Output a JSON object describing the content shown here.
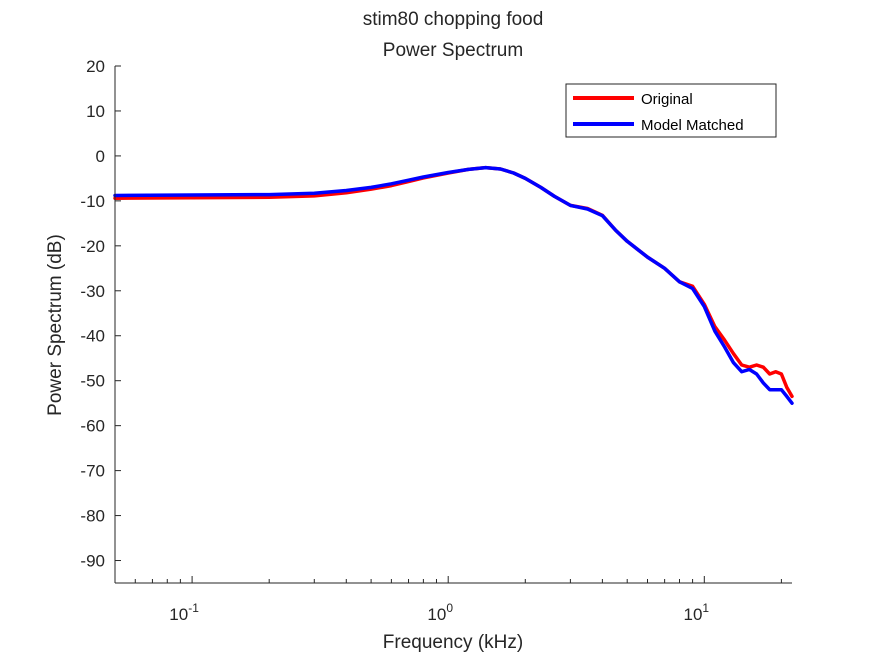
{
  "chart_data": {
    "type": "line",
    "title": [
      "stim80 chopping food",
      "Power Spectrum"
    ],
    "xlabel": "Frequency (kHz)",
    "ylabel": "Power Spectrum (dB)",
    "xscale": "log",
    "xlim": [
      0.05,
      22
    ],
    "ylim": [
      -95,
      20
    ],
    "yticks": [
      20,
      10,
      0,
      -10,
      -20,
      -30,
      -40,
      -50,
      -60,
      -70,
      -80,
      -90
    ],
    "yticklabels": [
      "20",
      "10",
      "0",
      "-10",
      "-20",
      "-30",
      "-40",
      "-50",
      "-60",
      "-70",
      "-80",
      "-90"
    ],
    "xticks": [
      {
        "value": 0.1,
        "base": "10",
        "exp": "-1"
      },
      {
        "value": 1,
        "base": "10",
        "exp": "0"
      },
      {
        "value": 10,
        "base": "10",
        "exp": "1"
      }
    ],
    "grid": false,
    "legend": "top-right",
    "series": [
      {
        "name": "Original",
        "color": "#ff0000",
        "points": [
          [
            0.05,
            -9.4
          ],
          [
            0.1,
            -9.3
          ],
          [
            0.2,
            -9.2
          ],
          [
            0.3,
            -8.9
          ],
          [
            0.4,
            -8.2
          ],
          [
            0.5,
            -7.4
          ],
          [
            0.6,
            -6.6
          ],
          [
            0.7,
            -5.7
          ],
          [
            0.8,
            -4.9
          ],
          [
            1.0,
            -3.8
          ],
          [
            1.2,
            -3.0
          ],
          [
            1.4,
            -2.6
          ],
          [
            1.6,
            -2.9
          ],
          [
            1.8,
            -3.8
          ],
          [
            2.0,
            -5.0
          ],
          [
            2.3,
            -7.0
          ],
          [
            2.6,
            -9.0
          ],
          [
            3.0,
            -11.0
          ],
          [
            3.5,
            -11.7
          ],
          [
            4.0,
            -13.2
          ],
          [
            4.5,
            -16.5
          ],
          [
            5.0,
            -19.0
          ],
          [
            6.0,
            -22.5
          ],
          [
            7.0,
            -25.0
          ],
          [
            8.0,
            -28.0
          ],
          [
            9.0,
            -29.0
          ],
          [
            10.0,
            -33.0
          ],
          [
            11.0,
            -38.0
          ],
          [
            12.0,
            -41.0
          ],
          [
            13.0,
            -44.0
          ],
          [
            14.0,
            -46.5
          ],
          [
            15.0,
            -47.0
          ],
          [
            16.0,
            -46.5
          ],
          [
            17.0,
            -47.0
          ],
          [
            18.0,
            -48.5
          ],
          [
            19.0,
            -48.0
          ],
          [
            20.0,
            -48.5
          ],
          [
            21.0,
            -51.5
          ],
          [
            22.0,
            -53.5
          ]
        ]
      },
      {
        "name": "Model Matched",
        "color": "#0000ff",
        "points": [
          [
            0.05,
            -8.8
          ],
          [
            0.1,
            -8.7
          ],
          [
            0.2,
            -8.6
          ],
          [
            0.3,
            -8.3
          ],
          [
            0.4,
            -7.7
          ],
          [
            0.5,
            -7.0
          ],
          [
            0.6,
            -6.2
          ],
          [
            0.7,
            -5.4
          ],
          [
            0.8,
            -4.7
          ],
          [
            1.0,
            -3.7
          ],
          [
            1.2,
            -3.0
          ],
          [
            1.4,
            -2.6
          ],
          [
            1.6,
            -2.9
          ],
          [
            1.8,
            -3.8
          ],
          [
            2.0,
            -5.0
          ],
          [
            2.3,
            -7.0
          ],
          [
            2.6,
            -9.0
          ],
          [
            3.0,
            -11.0
          ],
          [
            3.5,
            -11.8
          ],
          [
            4.0,
            -13.3
          ],
          [
            4.5,
            -16.5
          ],
          [
            5.0,
            -19.0
          ],
          [
            6.0,
            -22.5
          ],
          [
            7.0,
            -25.0
          ],
          [
            8.0,
            -28.0
          ],
          [
            9.0,
            -29.5
          ],
          [
            10.0,
            -33.5
          ],
          [
            11.0,
            -39.0
          ],
          [
            12.0,
            -42.5
          ],
          [
            13.0,
            -46.0
          ],
          [
            14.0,
            -48.0
          ],
          [
            15.0,
            -47.5
          ],
          [
            16.0,
            -48.5
          ],
          [
            17.0,
            -50.5
          ],
          [
            18.0,
            -52.0
          ],
          [
            19.0,
            -52.0
          ],
          [
            20.0,
            -52.0
          ],
          [
            21.0,
            -53.5
          ],
          [
            22.0,
            -55.0
          ]
        ]
      }
    ]
  }
}
